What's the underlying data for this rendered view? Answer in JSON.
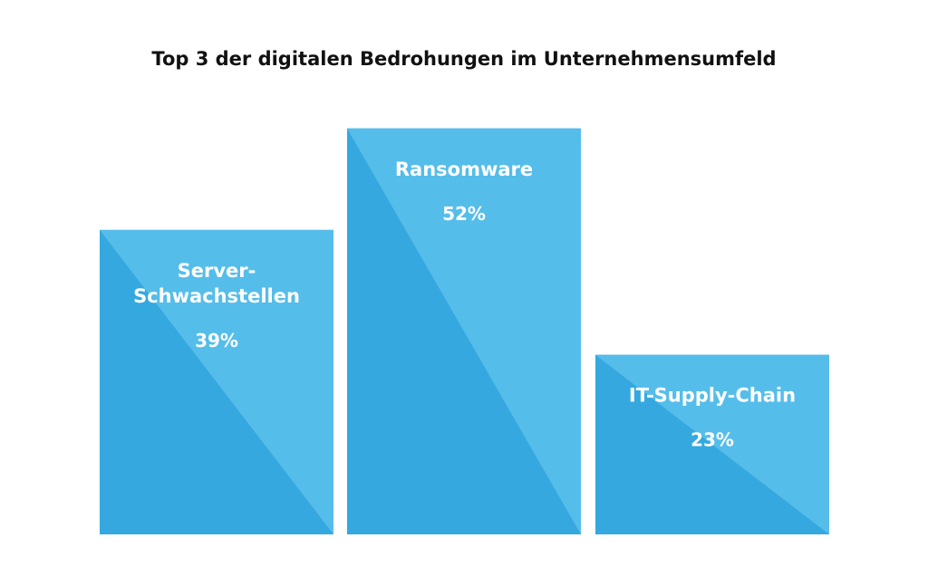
{
  "chart_data": {
    "type": "bar",
    "title": "Top 3 der digitalen Bedrohungen im Unternehmensumfeld",
    "categories": [
      "Server-Schwachstellen",
      "Ransomware",
      "IT-Supply-Chain"
    ],
    "category_lines": [
      [
        "Server-",
        "Schwachstellen"
      ],
      [
        "Ransomware"
      ],
      [
        "IT-Supply-Chain"
      ]
    ],
    "values": [
      39,
      52,
      23
    ],
    "value_labels": [
      "39%",
      "52%",
      "23%"
    ],
    "unit": "%",
    "grid": false,
    "colors": {
      "bar_dark": "#35a8df",
      "bar_light": "#55bdea",
      "title": "#111111",
      "text": "#ffffff"
    }
  }
}
